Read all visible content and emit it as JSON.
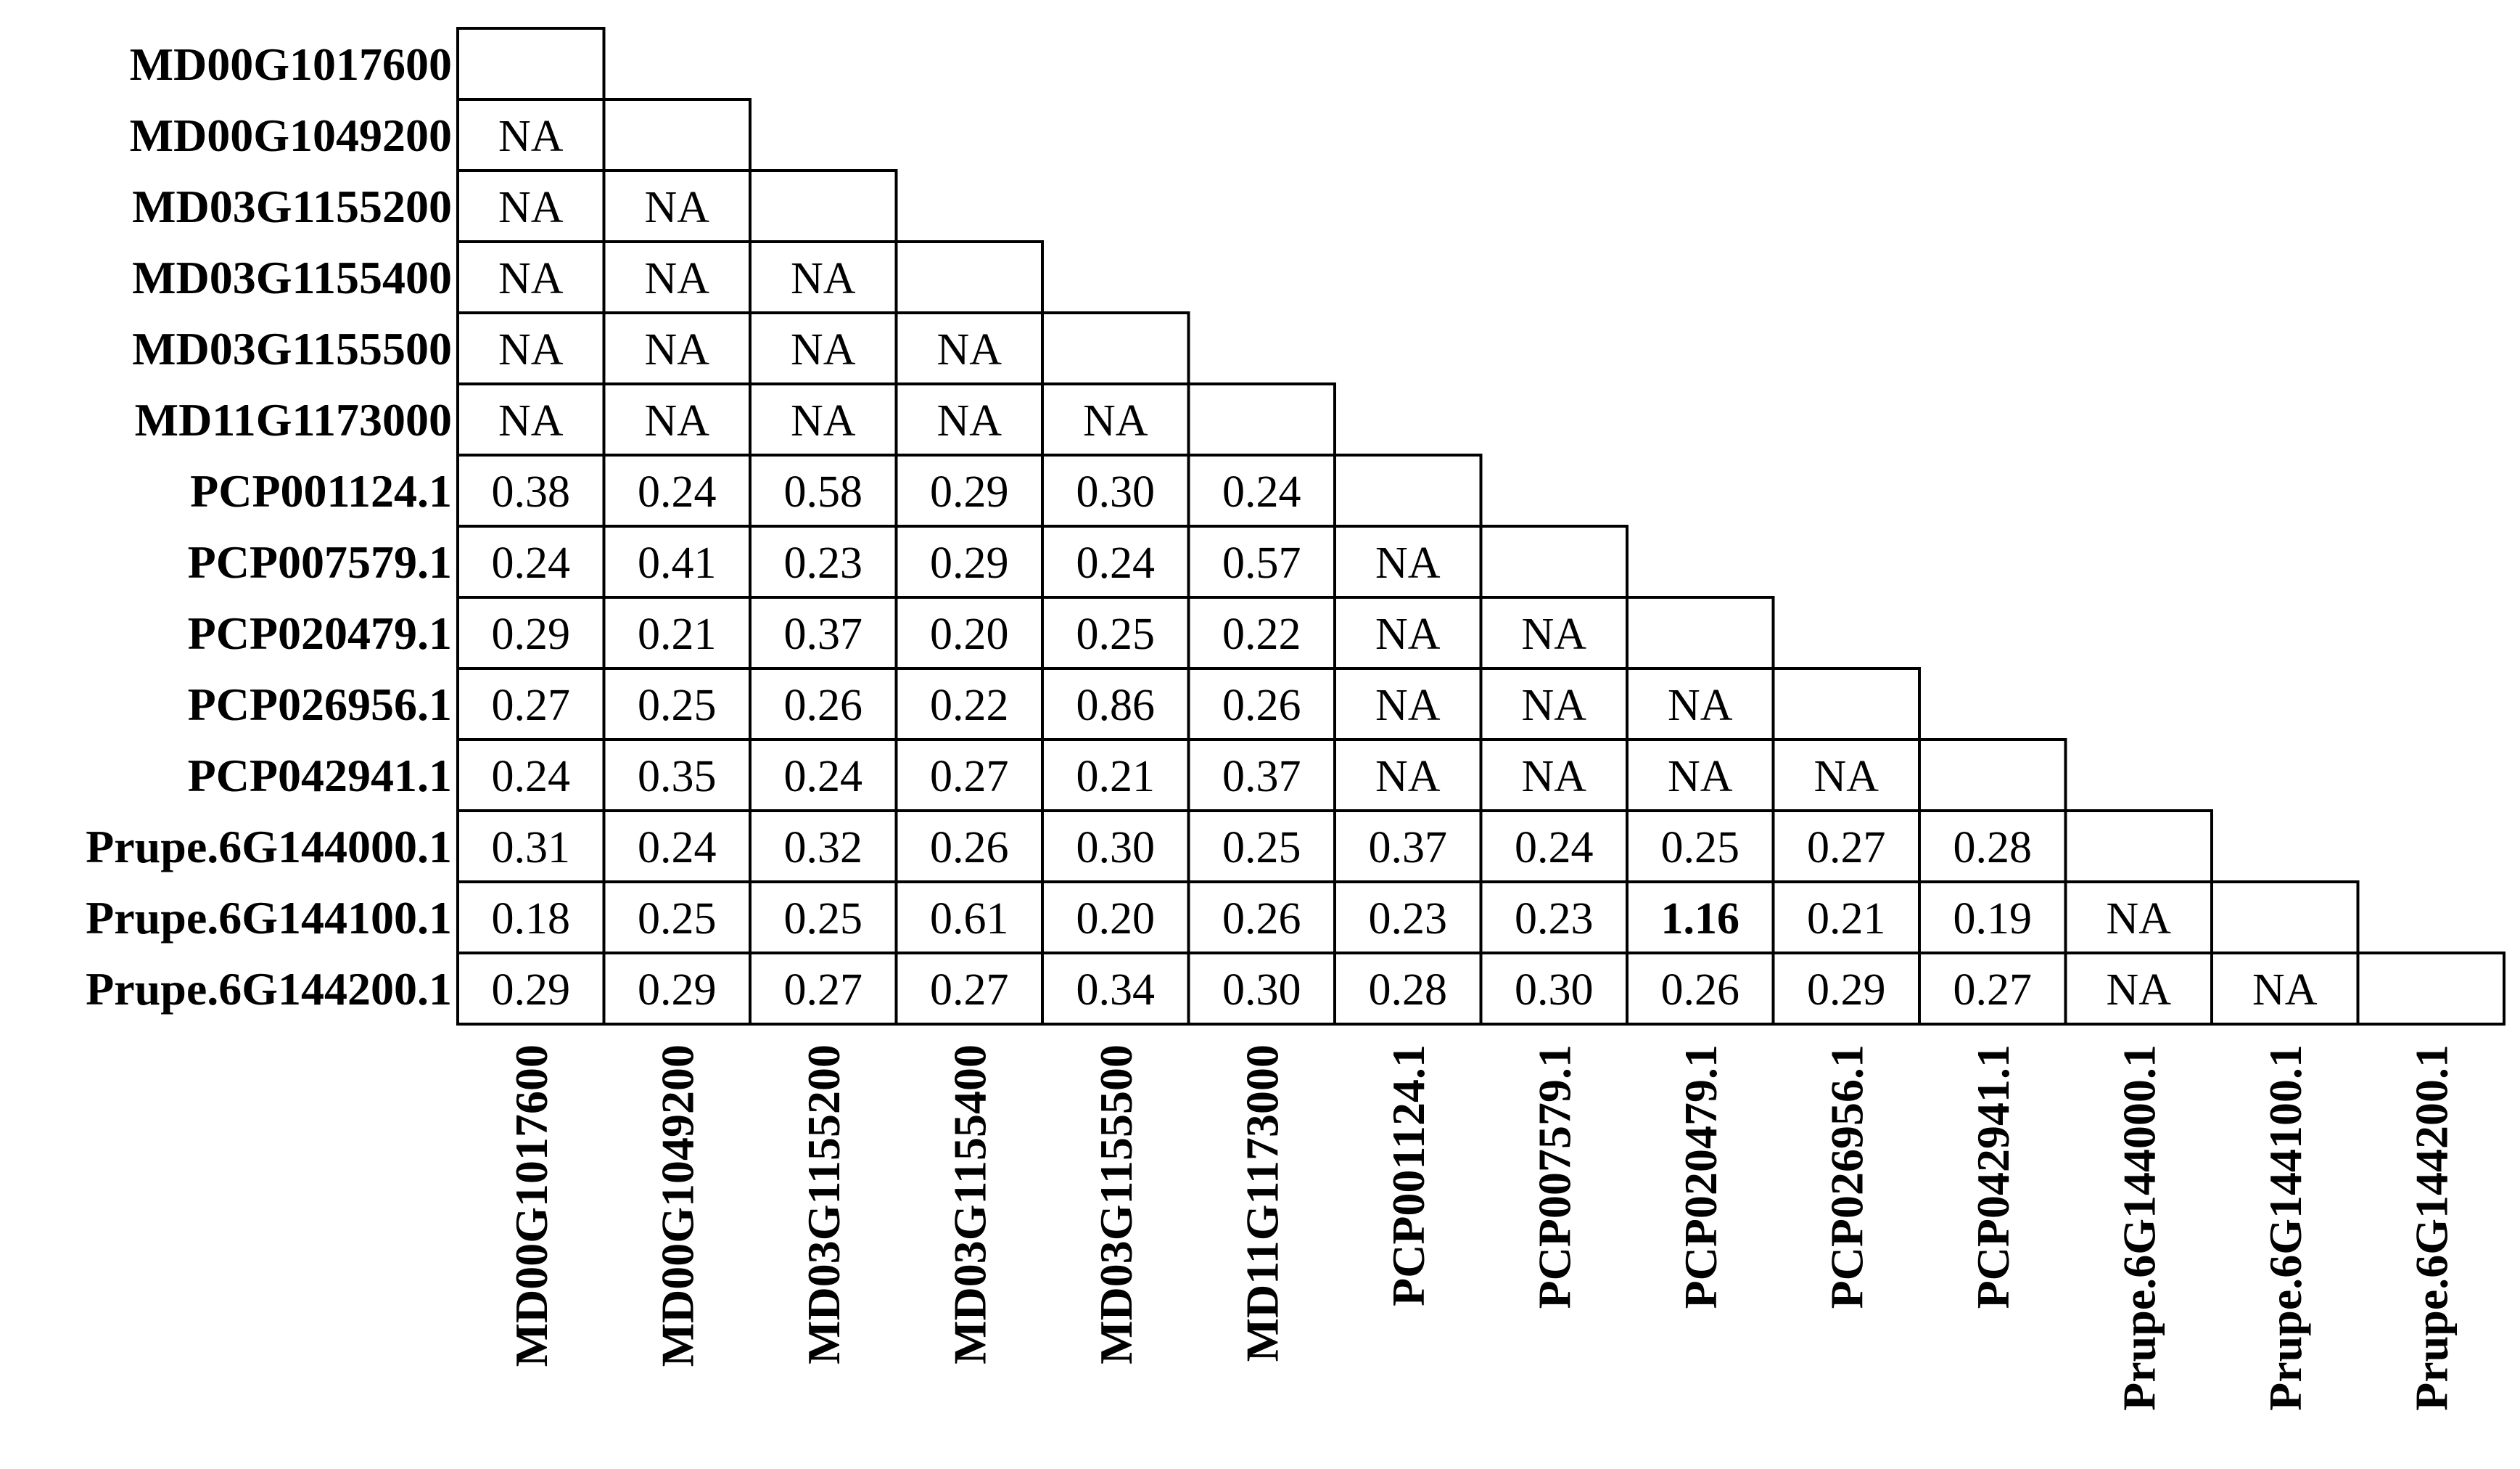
{
  "chart_data": {
    "type": "table",
    "labels": [
      "MD00G1017600",
      "MD00G1049200",
      "MD03G1155200",
      "MD03G1155400",
      "MD03G1155500",
      "MD11G1173000",
      "PCP001124.1",
      "PCP007579.1",
      "PCP020479.1",
      "PCP026956.1",
      "PCP042941.1",
      "Prupe.6G144000.1",
      "Prupe.6G144100.1",
      "Prupe.6G144200.1"
    ],
    "matrix": [
      [],
      [
        "NA"
      ],
      [
        "NA",
        "NA"
      ],
      [
        "NA",
        "NA",
        "NA"
      ],
      [
        "NA",
        "NA",
        "NA",
        "NA"
      ],
      [
        "NA",
        "NA",
        "NA",
        "NA",
        "NA"
      ],
      [
        "0.38",
        "0.24",
        "0.58",
        "0.29",
        "0.30",
        "0.24"
      ],
      [
        "0.24",
        "0.41",
        "0.23",
        "0.29",
        "0.24",
        "0.57",
        "NA"
      ],
      [
        "0.29",
        "0.21",
        "0.37",
        "0.20",
        "0.25",
        "0.22",
        "NA",
        "NA"
      ],
      [
        "0.27",
        "0.25",
        "0.26",
        "0.22",
        "0.86",
        "0.26",
        "NA",
        "NA",
        "NA"
      ],
      [
        "0.24",
        "0.35",
        "0.24",
        "0.27",
        "0.21",
        "0.37",
        "NA",
        "NA",
        "NA",
        "NA"
      ],
      [
        "0.31",
        "0.24",
        "0.32",
        "0.26",
        "0.30",
        "0.25",
        "0.37",
        "0.24",
        "0.25",
        "0.27",
        "0.28"
      ],
      [
        "0.18",
        "0.25",
        "0.25",
        "0.61",
        "0.20",
        "0.26",
        "0.23",
        "0.23",
        "1.16",
        "0.21",
        "0.19",
        "NA"
      ],
      [
        "0.29",
        "0.29",
        "0.27",
        "0.27",
        "0.34",
        "0.30",
        "0.28",
        "0.30",
        "0.26",
        "0.29",
        "0.27",
        "NA",
        "NA"
      ]
    ],
    "highlighted": [
      {
        "row": 12,
        "col": 8
      }
    ]
  }
}
